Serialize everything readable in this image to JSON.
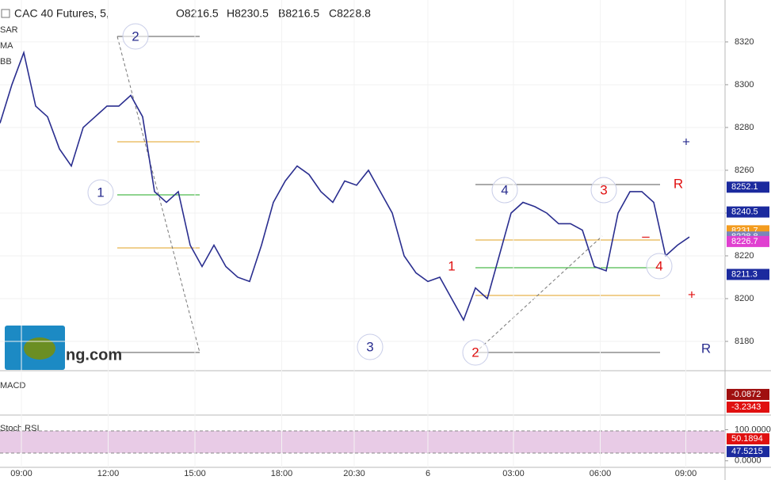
{
  "chart_data": {
    "type": "line",
    "title": "CAC 40 Futures, 5,",
    "header": [
      "O8216.5",
      "H8230.5",
      "B8216.5",
      "C8228.8"
    ],
    "indicators": [
      "SAR",
      "MA",
      "BB",
      "MACD",
      "Stoch RSI"
    ],
    "x": [
      0,
      1,
      2,
      3,
      4,
      5,
      6,
      7,
      8,
      9,
      10,
      11,
      12,
      13,
      14,
      15,
      16,
      17,
      18,
      19,
      20,
      21,
      22,
      23,
      24,
      25,
      26,
      27,
      28,
      29,
      30,
      31,
      32,
      33,
      34,
      35,
      36,
      37,
      38,
      39,
      40,
      41,
      42,
      43,
      44,
      45,
      46,
      47,
      48,
      49,
      50,
      51,
      52,
      53,
      54,
      55,
      56,
      57,
      58
    ],
    "series": [
      {
        "color": "#2a2e8f",
        "values": [
          8282,
          8300,
          8315,
          8290,
          8285,
          8270,
          8262,
          8280,
          8285,
          8290,
          8290,
          8295,
          8285,
          8250,
          8245,
          8250,
          8225,
          8215,
          8225,
          8215,
          8210,
          8208,
          8225,
          8245,
          8255,
          8262,
          8258,
          8250,
          8245,
          8255,
          8253,
          8260,
          8250,
          8240,
          8220,
          8212,
          8208,
          8210,
          8200,
          8190,
          8205,
          8200,
          8220,
          8240,
          8245,
          8243,
          8240,
          8235,
          8235,
          8232,
          8215,
          8213,
          8240,
          8250,
          8250,
          8245,
          8220,
          8225,
          8228.8
        ]
      }
    ],
    "xlim": [
      0,
      61
    ],
    "xticks": [
      {
        "value": 1.8,
        "label": "09:00"
      },
      {
        "value": 9.1,
        "label": "12:00"
      },
      {
        "value": 16.4,
        "label": "15:00"
      },
      {
        "value": 23.7,
        "label": "18:00"
      },
      {
        "value": 29.8,
        "label": "20:30"
      },
      {
        "value": 36,
        "label": "6"
      },
      {
        "value": 43.2,
        "label": "03:00"
      },
      {
        "value": 50.5,
        "label": "06:00"
      },
      {
        "value": 57.7,
        "label": "09:00"
      }
    ],
    "ylim": [
      8166.3,
      8339.6
    ],
    "yticks": [
      8180,
      8200,
      8220,
      8240,
      8260,
      8280,
      8300,
      8320
    ],
    "price_labels": {
      "values": [
        8252.1,
        8240.5,
        8231.7,
        8228.8,
        8226.7,
        8211.3
      ],
      "colors": [
        "#1b2a9e",
        "#1b2a9e",
        "#f39c1f",
        "#7a86b8",
        "#e040d0",
        "#1b2a9e"
      ]
    },
    "macd": {
      "ylim": [
        -4.8,
        5.4
      ],
      "values": [
        -0.0872,
        -3.2343
      ],
      "colors": [
        "#a01010",
        "#e01010"
      ]
    },
    "stoch": {
      "ylim": [
        -21,
        142
      ],
      "yticks": [
        {
          "value": 100,
          "label": "100.0000"
        },
        {
          "value": 0,
          "label": "0.0000"
        }
      ],
      "values": [
        50.1894,
        47.5215
      ],
      "colors": [
        "#e01010",
        "#1b2a9e"
      ]
    },
    "annotations": [
      "2",
      "1",
      "3",
      "2",
      "1",
      "4",
      "3",
      "R",
      "4",
      "–",
      "+",
      "+",
      "R"
    ],
    "annotation_colors": [
      "#2a2e8f",
      "#2a2e8f",
      "#2a2e8f",
      "#e01010",
      "#e01010",
      "#2a2e8f",
      "#e01010",
      "#e01010",
      "#e01010",
      "#e01010",
      "#2a2e8f",
      "#e01010",
      "#2a2e8f"
    ]
  },
  "logo_text": "ng.com"
}
